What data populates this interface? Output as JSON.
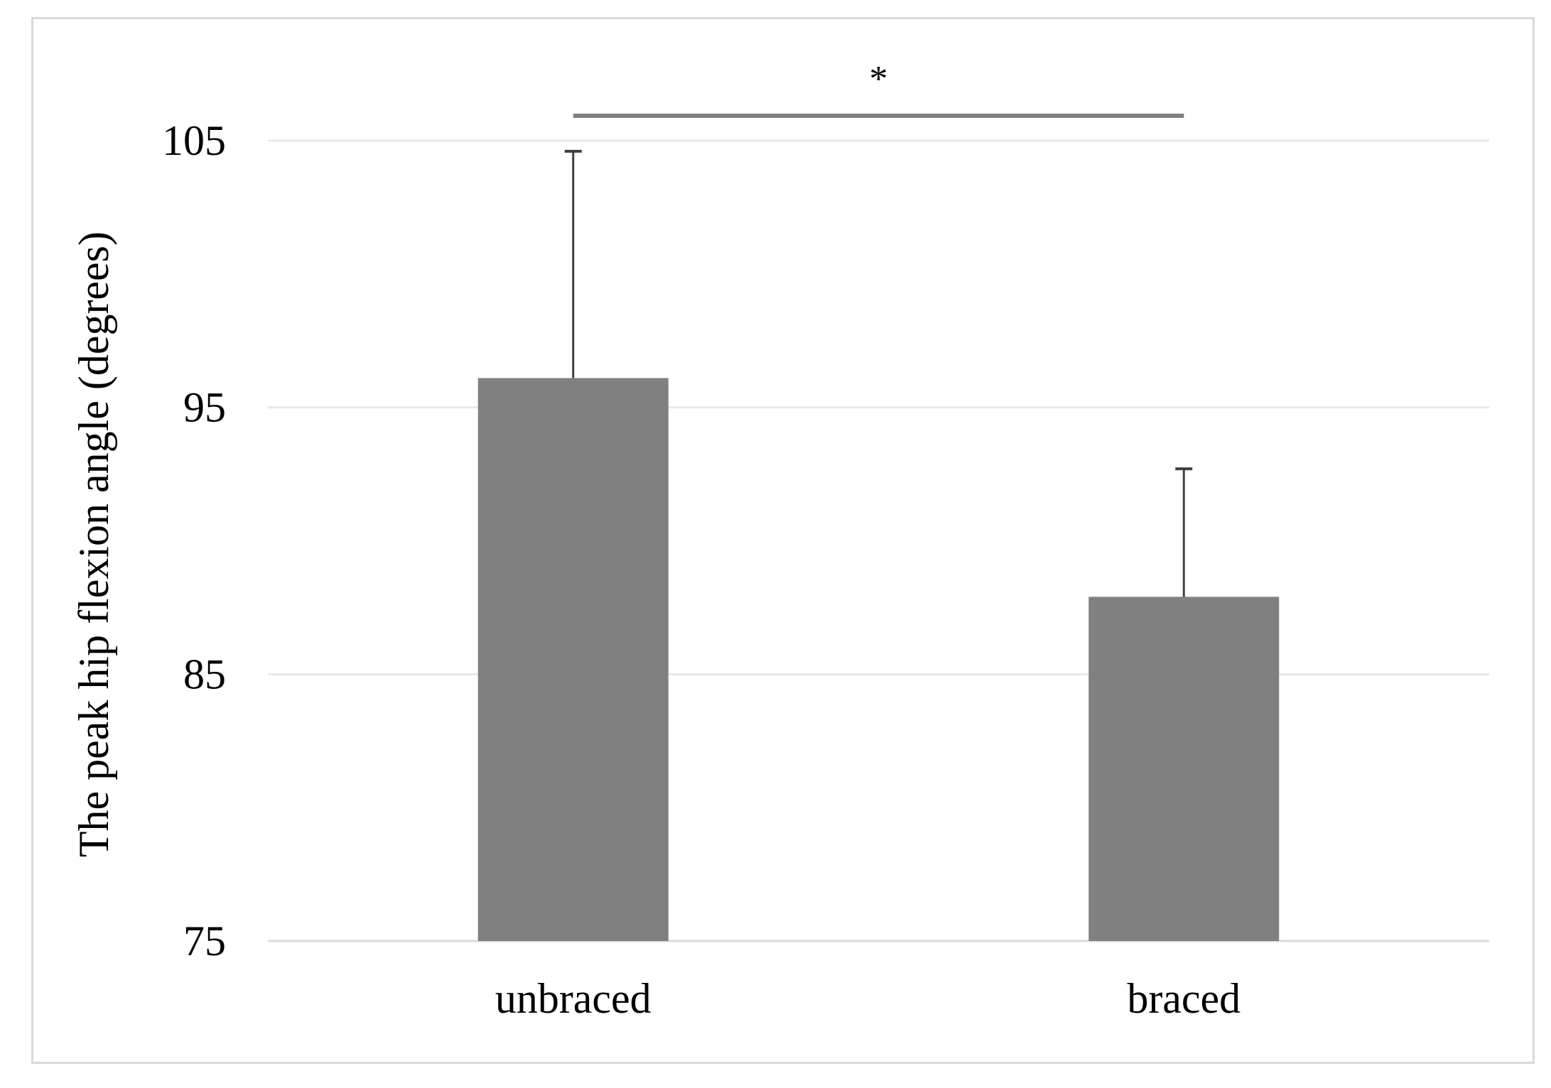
{
  "chart_data": {
    "type": "bar",
    "categories": [
      "unbraced",
      "braced"
    ],
    "values": [
      96.1,
      87.9
    ],
    "error_upper": [
      104.6,
      92.7
    ],
    "ylabel": "The peak hip flexion angle (degrees)",
    "ylim": [
      75,
      105
    ],
    "yticks": [
      75,
      85,
      95,
      105
    ],
    "grid": true,
    "legend": "none",
    "significance": {
      "between": [
        "unbraced",
        "braced"
      ],
      "label": "*"
    },
    "colors": {
      "bar": "#808080",
      "error": "#404040",
      "grid": "#e8e8e8",
      "axis": "#d9d9d9",
      "sig_line": "#808080"
    }
  }
}
